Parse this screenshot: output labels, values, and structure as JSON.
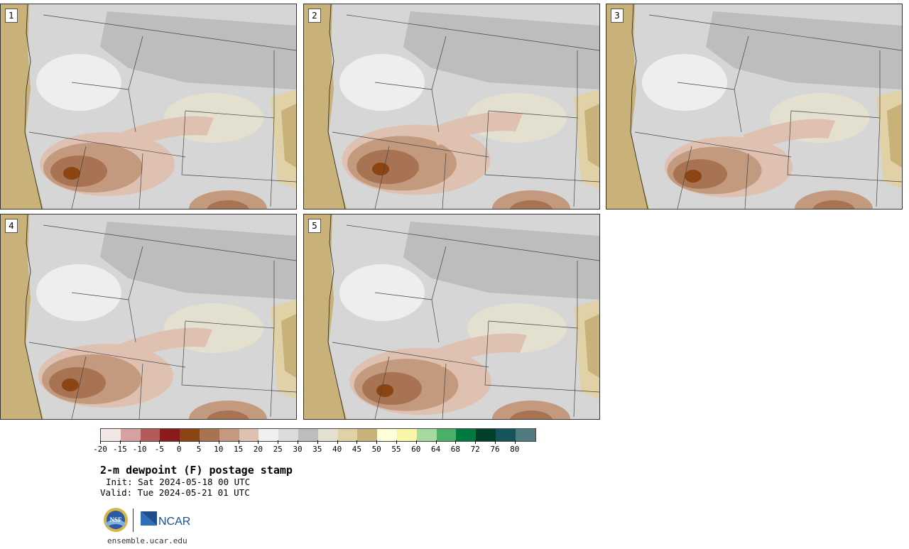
{
  "panels": [
    {
      "label": "1"
    },
    {
      "label": "2"
    },
    {
      "label": "3"
    },
    {
      "label": "4"
    },
    {
      "label": "5"
    }
  ],
  "colorbar": {
    "colors": [
      "#f3e6e6",
      "#d6a1a1",
      "#b45a5a",
      "#8b1a1a",
      "#8b4513",
      "#a87352",
      "#c49a7f",
      "#dfc1b2",
      "#f0f0f0",
      "#dcdcdc",
      "#bdbdbd",
      "#e3e0cf",
      "#e0d2a6",
      "#c9b27a",
      "#fefed9",
      "#f8f7a8",
      "#a6dba0",
      "#4caf67",
      "#007a40",
      "#003f2a",
      "#15545a",
      "#4f7b80"
    ],
    "tick_labels": [
      "-20",
      "-15",
      "-10",
      "-5",
      "0",
      "5",
      "10",
      "15",
      "20",
      "25",
      "30",
      "35",
      "40",
      "45",
      "50",
      "55",
      "60",
      "64",
      "68",
      "72",
      "76",
      "80"
    ]
  },
  "title": "2-m dewpoint (F) postage stamp",
  "init": "Init: Sat 2024-05-18 00 UTC",
  "valid": "Valid: Tue 2024-05-21 01 UTC",
  "logos": {
    "nsf": "NSF",
    "ncar": "NCAR"
  },
  "site": "ensemble.ucar.edu"
}
